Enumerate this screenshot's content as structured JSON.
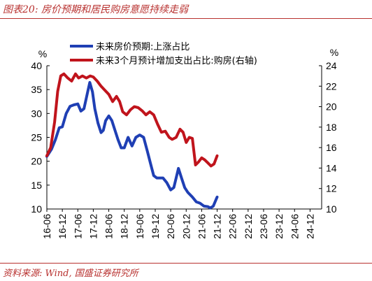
{
  "title": "图表20:  房价预期和居民购房意愿持续走弱",
  "source": "资料来源:  Wind,  国盛证券研究所",
  "chart_data": {
    "type": "line",
    "left_axis": {
      "unit_label": "%",
      "range": [
        10,
        40
      ],
      "ticks": [
        "10",
        "15",
        "20",
        "25",
        "30",
        "35",
        "40"
      ]
    },
    "right_axis": {
      "unit_label": "%",
      "range": [
        10,
        24
      ],
      "ticks": [
        "10",
        "12",
        "14",
        "16",
        "18",
        "20",
        "22",
        "24"
      ]
    },
    "x_ticks": [
      "16-06",
      "16-12",
      "17-06",
      "17-12",
      "18-06",
      "18-12",
      "19-06",
      "19-12",
      "20-06",
      "20-12",
      "21-06",
      "21-12",
      "22-06",
      "22-12",
      "23-06",
      "23-12",
      "24-06",
      "24-12"
    ],
    "legend_position": "top",
    "grid": false,
    "series": [
      {
        "name": "未来房价预期:上涨占比",
        "axis": "left",
        "color": "#1f3fb4",
        "points": [
          [
            0,
            21
          ],
          [
            0.6,
            22.5
          ],
          [
            1.1,
            24.5
          ],
          [
            1.6,
            27
          ],
          [
            2,
            27.2
          ],
          [
            2.5,
            30
          ],
          [
            3,
            31.5
          ],
          [
            3.5,
            31.8
          ],
          [
            4,
            32
          ],
          [
            4.4,
            30.5
          ],
          [
            4.8,
            31
          ],
          [
            5.2,
            34
          ],
          [
            5.55,
            36.5
          ],
          [
            5.9,
            34.5
          ],
          [
            6.2,
            31
          ],
          [
            6.6,
            28
          ],
          [
            7,
            26
          ],
          [
            7.3,
            26.5
          ],
          [
            7.6,
            28.5
          ],
          [
            8,
            29.5
          ],
          [
            8.4,
            28.5
          ],
          [
            8.8,
            26.5
          ],
          [
            9.2,
            24.5
          ],
          [
            9.6,
            22.8
          ],
          [
            10,
            22.8
          ],
          [
            10.5,
            25
          ],
          [
            11,
            23.2
          ],
          [
            11.5,
            25
          ],
          [
            12,
            25.5
          ],
          [
            12.5,
            25
          ],
          [
            13,
            22
          ],
          [
            13.4,
            19.5
          ],
          [
            13.8,
            17
          ],
          [
            14.2,
            16.5
          ],
          [
            14.6,
            16.5
          ],
          [
            15,
            16.5
          ],
          [
            15.5,
            15.5
          ],
          [
            16,
            14
          ],
          [
            16.4,
            14.5
          ],
          [
            17,
            18.5
          ],
          [
            17.4,
            16.5
          ],
          [
            17.8,
            14.5
          ],
          [
            18.2,
            13.5
          ],
          [
            18.8,
            12.5
          ],
          [
            19.3,
            11.5
          ],
          [
            19.8,
            11.2
          ],
          [
            20.3,
            10.6
          ],
          [
            20.8,
            10.5
          ],
          [
            21.1,
            10.2
          ],
          [
            21.5,
            10.6
          ],
          [
            22,
            12.5
          ]
        ]
      },
      {
        "name": "未来3个月预计增加支出占比:购房(右轴)",
        "axis": "right",
        "color": "#c0141c",
        "points": [
          [
            0,
            15.2
          ],
          [
            0.5,
            16
          ],
          [
            1,
            18.5
          ],
          [
            1.4,
            21.5
          ],
          [
            1.8,
            23
          ],
          [
            2.2,
            23.2
          ],
          [
            2.7,
            22.8
          ],
          [
            3.2,
            22.5
          ],
          [
            3.7,
            23.2
          ],
          [
            4.1,
            22.8
          ],
          [
            4.6,
            23
          ],
          [
            5.1,
            22.8
          ],
          [
            5.6,
            23
          ],
          [
            6,
            22.9
          ],
          [
            6.5,
            22.5
          ],
          [
            7,
            22
          ],
          [
            7.5,
            21.6
          ],
          [
            8,
            21.2
          ],
          [
            8.5,
            20.5
          ],
          [
            9,
            21
          ],
          [
            9.4,
            20.5
          ],
          [
            9.8,
            19.5
          ],
          [
            10.3,
            19.2
          ],
          [
            10.8,
            19.7
          ],
          [
            11.3,
            20
          ],
          [
            11.8,
            19.9
          ],
          [
            12.3,
            19.6
          ],
          [
            12.8,
            19.2
          ],
          [
            13.3,
            19.5
          ],
          [
            13.8,
            19.2
          ],
          [
            14.3,
            18.3
          ],
          [
            14.8,
            17.5
          ],
          [
            15.3,
            17.6
          ],
          [
            15.8,
            17
          ],
          [
            16.2,
            16.8
          ],
          [
            16.7,
            17
          ],
          [
            17.2,
            17.8
          ],
          [
            17.6,
            17.5
          ],
          [
            18,
            16.5
          ],
          [
            18.4,
            17
          ],
          [
            18.8,
            16.9
          ],
          [
            19.2,
            14.3
          ],
          [
            19.6,
            14.6
          ],
          [
            20,
            15
          ],
          [
            20.4,
            14.8
          ],
          [
            20.8,
            14.5
          ],
          [
            21.2,
            14.2
          ],
          [
            21.6,
            14.4
          ],
          [
            22,
            15.2
          ]
        ]
      }
    ]
  }
}
